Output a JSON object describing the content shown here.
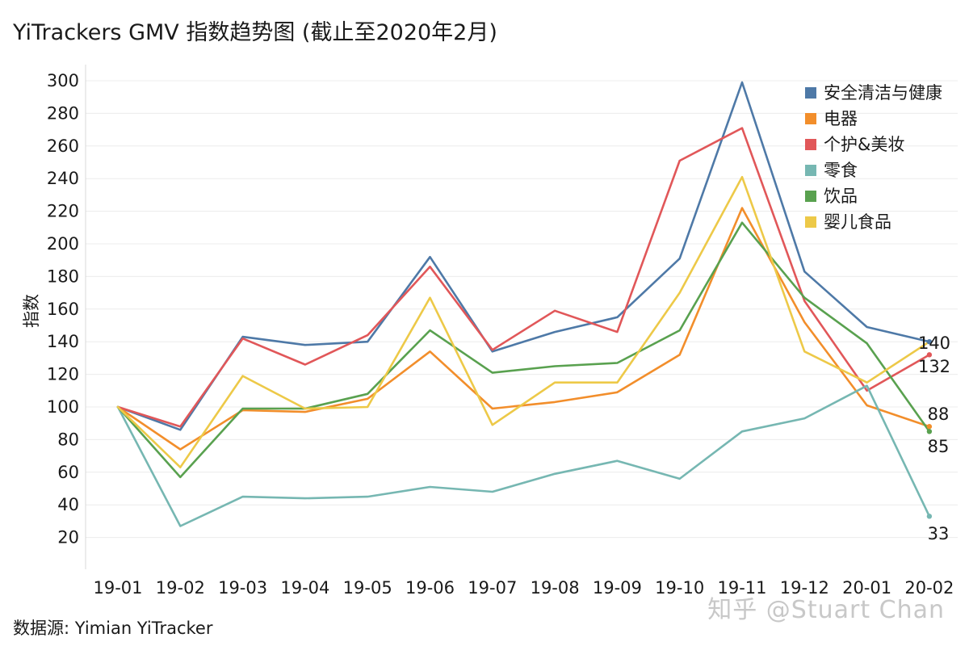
{
  "chart_data": {
    "type": "line",
    "title": "YiTrackers GMV 指数趋势图 (截止至2020年2月)",
    "source": "数据源: Yimian YiTracker",
    "xlabel": "",
    "ylabel": "指数",
    "ylim": [
      0,
      310
    ],
    "yticks": [
      20,
      40,
      60,
      80,
      100,
      120,
      140,
      160,
      180,
      200,
      220,
      240,
      260,
      280,
      300
    ],
    "grid": true,
    "legend_position": "top-right",
    "categories": [
      "19-01",
      "19-02",
      "19-03",
      "19-04",
      "19-05",
      "19-06",
      "19-07",
      "19-08",
      "19-09",
      "19-10",
      "19-11",
      "19-12",
      "20-01",
      "20-02"
    ],
    "series": [
      {
        "name": "安全清洁与健康",
        "color": "#4e79a7",
        "values": [
          100,
          86,
          143,
          138,
          140,
          192,
          134,
          146,
          155,
          191,
          299,
          183,
          149,
          140
        ]
      },
      {
        "name": "电器",
        "color": "#f28e2b",
        "values": [
          100,
          74,
          98,
          97,
          105,
          134,
          99,
          103,
          109,
          132,
          222,
          152,
          101,
          88
        ]
      },
      {
        "name": "个护&美妆",
        "color": "#e15759",
        "values": [
          100,
          88,
          142,
          126,
          144,
          186,
          135,
          159,
          146,
          251,
          271,
          165,
          110,
          132
        ]
      },
      {
        "name": "零食",
        "color": "#76b7b2",
        "values": [
          100,
          27,
          45,
          44,
          45,
          51,
          48,
          59,
          67,
          56,
          85,
          93,
          113,
          33
        ]
      },
      {
        "name": "饮品",
        "color": "#59a14f",
        "values": [
          100,
          57,
          99,
          99,
          108,
          147,
          121,
          125,
          127,
          147,
          213,
          167,
          139,
          85
        ]
      },
      {
        "name": "婴儿食品",
        "color": "#edc948",
        "values": [
          100,
          63,
          119,
          99,
          100,
          167,
          89,
          115,
          115,
          170,
          241,
          134,
          115,
          140
        ]
      }
    ],
    "end_labels": [
      "140",
      "132",
      "88",
      "85",
      "33"
    ]
  },
  "watermark": "知乎 @Stuart Chan"
}
